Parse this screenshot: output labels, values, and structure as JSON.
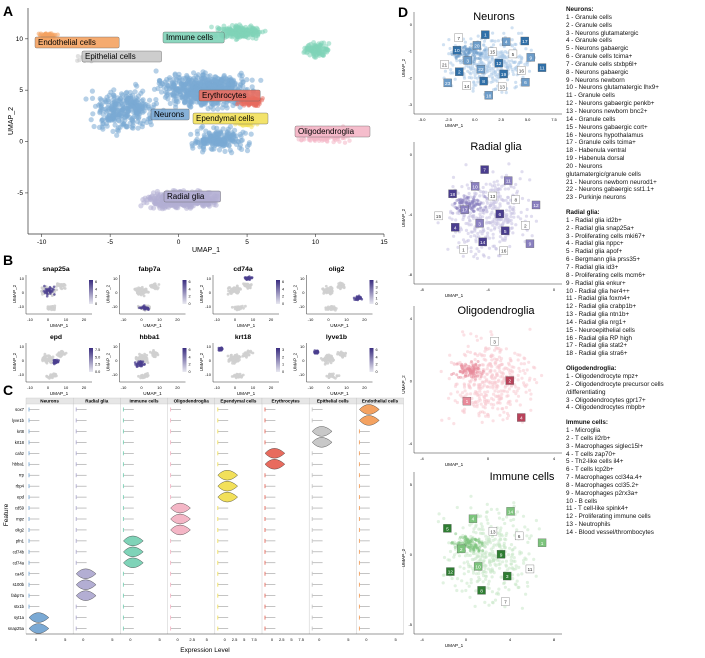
{
  "panels": {
    "a": "A",
    "b": "B",
    "c": "C",
    "d": "D"
  },
  "panel_a": {
    "xlabel": "UMAP_1",
    "ylabel": "UMAP_2",
    "x_ticks": [
      "-10",
      "-5",
      "0",
      "5",
      "10",
      "15"
    ],
    "y_ticks": [
      "10",
      "5",
      "0",
      "-5"
    ],
    "clusters": [
      {
        "name": "Immune cells",
        "color": "#7fd3b8"
      },
      {
        "name": "Endothelial cells",
        "color": "#f4a261"
      },
      {
        "name": "Epithelial cells",
        "color": "#c8c8c8"
      },
      {
        "name": "Erythrocytes",
        "color": "#e86b5e"
      },
      {
        "name": "Neurons",
        "color": "#7aa9d4"
      },
      {
        "name": "Ependymal cells",
        "color": "#f2e05a"
      },
      {
        "name": "Oligodendroglia",
        "color": "#f4b6c6"
      },
      {
        "name": "Radial glia",
        "color": "#b3aed3"
      }
    ]
  },
  "panel_b": {
    "xlabel": "UMAP_1",
    "ylabel": "UMAP_2",
    "x_ticks": [
      "-10",
      "0",
      "10",
      "20"
    ],
    "y_ticks": [
      "10",
      "0",
      "-10"
    ],
    "genes": [
      {
        "name": "snap25a",
        "scale": [
          "6",
          "4",
          "2",
          "0"
        ]
      },
      {
        "name": "fabp7a",
        "scale": [
          "6",
          "4",
          "2",
          "0"
        ]
      },
      {
        "name": "cd74a",
        "scale": [
          "6",
          "4",
          "2",
          "0"
        ]
      },
      {
        "name": "olig2",
        "scale": [
          "4",
          "3",
          "2",
          "1",
          "0"
        ]
      },
      {
        "name": "epd",
        "scale": [
          "7.5",
          "5.0",
          "2.5",
          "0.0"
        ]
      },
      {
        "name": "hbba1",
        "scale": [
          "6",
          "4",
          "2",
          "0"
        ]
      },
      {
        "name": "krt18",
        "scale": [
          "3",
          "2",
          "1",
          "0"
        ]
      },
      {
        "name": "lyve1b",
        "scale": [
          "6",
          "4",
          "2",
          "0"
        ]
      }
    ]
  },
  "panel_c": {
    "xlabel": "Expression Level",
    "ylabel": "Feature",
    "columns": [
      {
        "name": "Neurons",
        "color": "#7aa9d4",
        "ticks": [
          "0",
          "5"
        ]
      },
      {
        "name": "Radial glia",
        "color": "#b3aed3",
        "ticks": [
          "0",
          "5"
        ]
      },
      {
        "name": "Immune cells",
        "color": "#7fd3b8",
        "ticks": [
          "0",
          "5"
        ]
      },
      {
        "name": "Oligodendroglia",
        "color": "#f4b6c6",
        "ticks": [
          "0",
          "2.5",
          "5"
        ]
      },
      {
        "name": "Ependymal cells",
        "color": "#f2e05a",
        "ticks": [
          "0",
          "2.5",
          "5",
          "7.5"
        ]
      },
      {
        "name": "Erythrocytes",
        "color": "#e86b5e",
        "ticks": [
          "0",
          "2.5",
          "5",
          "7.5"
        ]
      },
      {
        "name": "Epithelial cells",
        "color": "#c8c8c8",
        "ticks": [
          "0",
          "5"
        ]
      },
      {
        "name": "Endothelial cells",
        "color": "#f4a261",
        "ticks": [
          "0",
          "5"
        ]
      }
    ],
    "features": [
      "sox7",
      "lyve1b",
      "krt8",
      "krt18",
      "cahz",
      "hbba1",
      "rrp",
      "rbp4",
      "epd",
      "cd59",
      "mpz",
      "olig2",
      "pfn1",
      "cd74b",
      "cd74a",
      "ca45",
      "s100b",
      "fabp7a",
      "stx1b",
      "syt1a",
      "snap25a"
    ],
    "highlights": [
      [
        20,
        0
      ],
      [
        19,
        0
      ],
      [
        17,
        1
      ],
      [
        16,
        1
      ],
      [
        15,
        1
      ],
      [
        14,
        2
      ],
      [
        13,
        2
      ],
      [
        12,
        2
      ],
      [
        11,
        3
      ],
      [
        10,
        3
      ],
      [
        9,
        3
      ],
      [
        8,
        4
      ],
      [
        7,
        4
      ],
      [
        6,
        4
      ],
      [
        5,
        5
      ],
      [
        4,
        5
      ],
      [
        3,
        6
      ],
      [
        2,
        6
      ],
      [
        1,
        7
      ],
      [
        0,
        7
      ]
    ]
  },
  "panel_d": {
    "xlabel": "UMAP_1",
    "ylabel": "UMAP_2",
    "subplots": [
      {
        "title": "Neurons",
        "x_ticks": [
          "-5.0",
          "-2.5",
          "0.0",
          "2.5",
          "5.0",
          "7.5"
        ],
        "y_ticks": [
          "0",
          "-1",
          "-2",
          "-3"
        ],
        "labels": [
          "12",
          "22",
          "15",
          "19",
          "3",
          "5",
          "8",
          "20",
          "16",
          "2",
          "4",
          "13",
          "10",
          "9",
          "14",
          "1",
          "6",
          "21",
          "17",
          "18",
          "7",
          "11",
          "23"
        ]
      },
      {
        "title": "Radial glia",
        "x_ticks": [
          "-8",
          "-4",
          "0"
        ],
        "y_ticks": [
          "0",
          "-4",
          "-8"
        ],
        "labels": [
          "6",
          "3",
          "13",
          "5",
          "17",
          "8",
          "14",
          "10",
          "2",
          "4",
          "11",
          "16",
          "18",
          "12",
          "1",
          "7",
          "9",
          "15"
        ]
      },
      {
        "title": "Oligodendroglia",
        "x_ticks": [
          "-4",
          "0",
          "4"
        ],
        "y_ticks": [
          "4",
          "0",
          "-4"
        ],
        "labels": [
          "2",
          "1",
          "3",
          "4"
        ]
      },
      {
        "title": "Immune cells",
        "x_ticks": [
          "-4",
          "0",
          "4",
          "8"
        ],
        "y_ticks": [
          "5",
          "0",
          "-5"
        ],
        "labels": [
          "9",
          "10",
          "13",
          "3",
          "2",
          "6",
          "8",
          "4",
          "11",
          "12",
          "14",
          "7",
          "5",
          "1"
        ]
      }
    ]
  },
  "legend": {
    "neurons_title": "Neurons:",
    "neurons": [
      "1 - Granule cells",
      "2 - Granule cells",
      "3 - Neurons glutamatergic",
      "4 - Granule cells",
      "5 - Neurons gabaergic",
      "6 - Granule cells tcima+",
      "7 - Granule cells stxbp6l+",
      "8 - Neurons gabaergic",
      "9 - Neurons newborn",
      "10 - Neurons glutamatergic lhx9+",
      "11 - Granule cells",
      "12 - Neurons gabaergic penkb+",
      "13 - Neurons newborn bnc2+",
      "14 - Granule cells",
      "15 - Neurons gabaergic cort+",
      "16 - Neurons hypothalamus",
      "17 - Granule cells tcima+",
      "18 - Habenula ventral",
      "19 - Habenula dorsal",
      "20 - Neurons",
      "glutamatergic/granule cells",
      "21 - Neurons newborn neurod1+",
      "22 - Neurons gabaergic sst1.1+",
      "23 - Purkinje neurons"
    ],
    "radial_title": "Radial glia:",
    "radial": [
      "1 - Radial glia id2b+",
      "2 - Radial glia snap25a+",
      "3 - Proliferating cells mki67+",
      "4 - Radial glia nppc+",
      "5 - Radial glia apof+",
      "6 - Bergmann glia prss35+",
      "7 - Radial glia id3+",
      "8 - Proliferating cells mcm6+",
      "9 - Radial glia enkur+",
      "10 - Radial glia her4++",
      "11 - Radial glia foxm4+",
      "12 - Radial glia crabp1b+",
      "13 - Radial glia ntn1b+",
      "14 - Radial glia nrg1+",
      "15 - Neuroepithelial cells",
      "16 - Radial glia RP high",
      "17 - Radial glia stat2+",
      "18 - Radial glia stra6+"
    ],
    "oligo_title": "Oligodendroglia:",
    "oligo": [
      "1 - Oligodendrocyte mpz+",
      "2 - Oligodendrocyte precursor cells",
      "/differentiating",
      "3 - Oligodendrocytes gpr17+",
      "4 - Oligodendrocytes mbpb+"
    ],
    "immune_title": "Immune cells:",
    "immune": [
      "1 - Microglia",
      "2 - T cells il2rb+",
      "3 - Macrophages siglec15l+",
      "4 - T cells zap70+",
      "5 - Th2-like cells il4+",
      "6 - T cells lcp2b+",
      "7 - Macrophages ccl34a.4+",
      "8 - Macrophages ccl35.2+",
      "9 - Macrophages p2rx3a+",
      "10 - B cells",
      "11 - T cell-like spink4+",
      "12 - Proliferating immune cells",
      "13 - Neutrophils",
      "14 - Blood vessel/thrombocytes"
    ]
  },
  "chart_data": [
    {
      "type": "scatter",
      "panel": "A",
      "xlabel": "UMAP_1",
      "ylabel": "UMAP_2",
      "xlim": [
        -11,
        15
      ],
      "ylim": [
        -9,
        13
      ],
      "series": [
        {
          "name": "Neurons",
          "cluster_center": [
            -2,
            3
          ]
        },
        {
          "name": "Immune cells",
          "cluster_center": [
            4.5,
            10
          ]
        },
        {
          "name": "Endothelial cells",
          "cluster_center": [
            -9.5,
            8
          ]
        },
        {
          "name": "Epithelial cells",
          "cluster_center": [
            -6,
            7
          ]
        },
        {
          "name": "Erythrocytes",
          "cluster_center": [
            5.5,
            3.6
          ]
        },
        {
          "name": "Ependymal cells",
          "cluster_center": [
            5,
            1.6
          ]
        },
        {
          "name": "Oligodendroglia",
          "cluster_center": [
            11,
            0.8
          ]
        },
        {
          "name": "Radial glia",
          "cluster_center": [
            0,
            -5.5
          ]
        }
      ]
    },
    {
      "type": "scatter",
      "panel": "B",
      "xlabel": "UMAP_1",
      "ylabel": "UMAP_2",
      "series": [
        {
          "name": "snap25a"
        },
        {
          "name": "fabp7a"
        },
        {
          "name": "cd74a"
        },
        {
          "name": "olig2"
        },
        {
          "name": "epd"
        },
        {
          "name": "hbba1"
        },
        {
          "name": "krt18"
        },
        {
          "name": "lyve1b"
        }
      ]
    },
    {
      "type": "violin",
      "panel": "C",
      "xlabel": "Expression Level",
      "ylabel": "Feature",
      "categories": [
        "Neurons",
        "Radial glia",
        "Immune cells",
        "Oligodendroglia",
        "Ependymal cells",
        "Erythrocytes",
        "Epithelial cells",
        "Endothelial cells"
      ]
    },
    {
      "type": "scatter",
      "panel": "D",
      "xlabel": "UMAP_1",
      "ylabel": "UMAP_2",
      "series": [
        {
          "name": "Neurons"
        },
        {
          "name": "Radial glia"
        },
        {
          "name": "Oligodendroglia"
        },
        {
          "name": "Immune cells"
        }
      ]
    }
  ]
}
